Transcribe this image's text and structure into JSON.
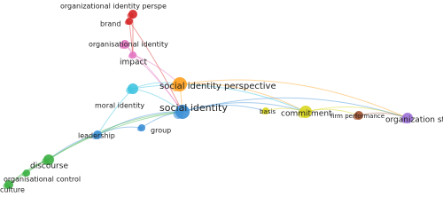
{
  "nodes": [
    {
      "label": "organizational identity perspe",
      "color": "#d62728"
    },
    {
      "label": "brand",
      "color": "#d62728"
    },
    {
      "label": "organisational identity",
      "color": "#e377c2"
    },
    {
      "label": "impact",
      "color": "#e377c2"
    },
    {
      "label": "social identity perspective",
      "color": "#ff9f1c"
    },
    {
      "label": "moral identity",
      "color": "#3fc4e0"
    },
    {
      "label": "social identity",
      "color": "#3b8fd6"
    },
    {
      "label": "leadership",
      "color": "#3b8fd6"
    },
    {
      "label": "group",
      "color": "#3b8fd6"
    },
    {
      "label": "discourse",
      "color": "#3cb043"
    },
    {
      "label": "organisational control",
      "color": "#3cb043"
    },
    {
      "label": "culture",
      "color": "#3cb043"
    },
    {
      "label": "basis",
      "color": "#d9d61f"
    },
    {
      "label": "commitment",
      "color": "#d9d61f"
    },
    {
      "label": "firm performance",
      "color": "#a0522d"
    },
    {
      "label": "organization study",
      "color": "#9b6fd6"
    }
  ]
}
